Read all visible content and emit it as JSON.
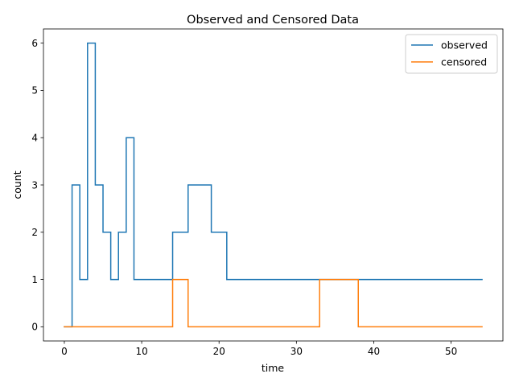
{
  "chart_data": {
    "type": "line",
    "drawstyle": "steps-post",
    "title": "Observed and Censored Data",
    "xlabel": "time",
    "ylabel": "count",
    "xlim": [
      -2.7,
      56.7
    ],
    "ylim": [
      -0.3,
      6.3
    ],
    "xticks": [
      0,
      10,
      20,
      30,
      40,
      50
    ],
    "yticks": [
      0,
      1,
      2,
      3,
      4,
      5,
      6
    ],
    "grid": false,
    "legend_position": "top-right",
    "series": [
      {
        "name": "observed",
        "color": "#1f77b4",
        "x": [
          0,
          1,
          2,
          3,
          4,
          5,
          6,
          7,
          8,
          9,
          14,
          16,
          19,
          21,
          54
        ],
        "y": [
          0,
          3,
          1,
          6,
          3,
          2,
          1,
          2,
          4,
          1,
          2,
          3,
          2,
          1,
          1
        ]
      },
      {
        "name": "censored",
        "color": "#ff7f0e",
        "x": [
          0,
          14,
          16,
          33,
          38,
          54
        ],
        "y": [
          0,
          1,
          0,
          1,
          0,
          0
        ]
      }
    ]
  }
}
